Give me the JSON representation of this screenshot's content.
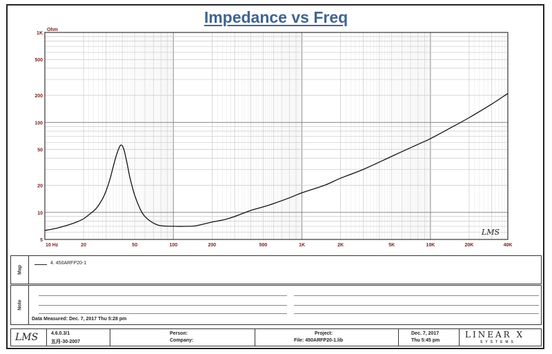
{
  "chart_data": {
    "type": "line",
    "title": "Impedance vs Freq",
    "y_unit": "Ohm",
    "x_scale": "log",
    "y_scale": "log",
    "xlim": [
      10,
      40000
    ],
    "ylim": [
      5,
      1000
    ],
    "x_ticks": [
      10,
      20,
      50,
      100,
      200,
      500,
      1000,
      2000,
      5000,
      10000,
      20000,
      40000
    ],
    "x_tick_labels": [
      "10 Hz",
      "20",
      "50",
      "100",
      "200",
      "500",
      "1K",
      "2K",
      "5K",
      "10K",
      "20K",
      "40K"
    ],
    "y_ticks": [
      5,
      10,
      20,
      50,
      100,
      200,
      500,
      1000
    ],
    "y_tick_labels": [
      "5",
      "10",
      "20",
      "50",
      "100",
      "200",
      "500",
      "1K"
    ],
    "grid": true,
    "watermark": "LMS",
    "series": [
      {
        "name": "4. 450ARFP20-1",
        "color": "#111111",
        "x": [
          10,
          12,
          15,
          18,
          20,
          22,
          25,
          28,
          30,
          32,
          34,
          36,
          38,
          39,
          40,
          41,
          42,
          44,
          46,
          50,
          55,
          60,
          70,
          80,
          100,
          130,
          150,
          200,
          250,
          300,
          400,
          500,
          600,
          800,
          1000,
          1500,
          2000,
          3000,
          5000,
          8000,
          10000,
          15000,
          20000,
          30000,
          40000
        ],
        "y": [
          6.3,
          6.6,
          7.2,
          7.9,
          8.5,
          9.4,
          11,
          14,
          17.5,
          23,
          32,
          43,
          53,
          56,
          55,
          51,
          45,
          33,
          24,
          15.5,
          11,
          9,
          7.6,
          7.1,
          7,
          7,
          7.1,
          7.8,
          8.3,
          9,
          10.5,
          11.5,
          12.5,
          14.5,
          16.5,
          20,
          24,
          30,
          42,
          57,
          66,
          90,
          113,
          160,
          210
        ]
      }
    ]
  },
  "legend": {
    "entry": "4. 450ARFP20-1"
  },
  "panels": {
    "map_label": "Map",
    "note_label": "Note",
    "note_date": "Data Measured: Dec. 7, 2017   Thu   5:28 pm"
  },
  "footer": {
    "version": "4.6.0.3/1",
    "version_date": "五月-30-2007",
    "person_label": "Person:",
    "company_label": "Company:",
    "project_label": "Project:",
    "file_label": "File: 450ARFP20-1.lib",
    "date_line1": "Dec. 7, 2017",
    "date_line2": "Thu  5:45 pm",
    "brand": "LINEAR X",
    "brand_sub": "SYSTEMS",
    "logo": "LMS"
  }
}
